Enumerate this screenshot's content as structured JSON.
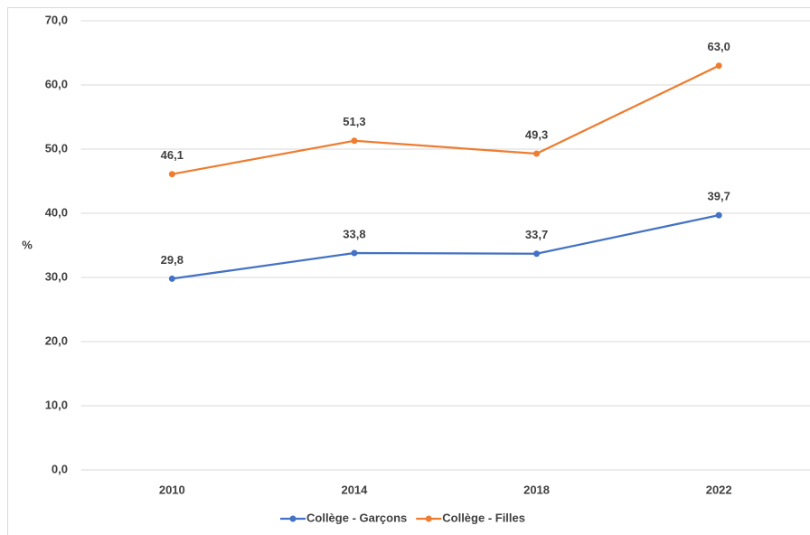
{
  "chart_data": {
    "type": "line",
    "categories": [
      "2010",
      "2014",
      "2018",
      "2022"
    ],
    "series": [
      {
        "name": "Collège - Garçons",
        "color": "#4472c4",
        "values": [
          29.8,
          33.8,
          33.7,
          39.7
        ],
        "value_labels": [
          "29,8",
          "33,8",
          "33,7",
          "39,7"
        ]
      },
      {
        "name": "Collège - Filles",
        "color": "#ed7d31",
        "values": [
          46.1,
          51.3,
          49.3,
          63.0
        ],
        "value_labels": [
          "46,1",
          "51,3",
          "49,3",
          "63,0"
        ]
      }
    ],
    "ylabel": "%",
    "ylim": [
      0,
      70
    ],
    "yticks": [
      {
        "value": 0,
        "label": "0,0"
      },
      {
        "value": 10,
        "label": "10,0"
      },
      {
        "value": 20,
        "label": "20,0"
      },
      {
        "value": 30,
        "label": "30,0"
      },
      {
        "value": 40,
        "label": "40,0"
      },
      {
        "value": 50,
        "label": "50,0"
      },
      {
        "value": 60,
        "label": "60,0"
      },
      {
        "value": 70,
        "label": "70,0"
      }
    ],
    "grid": true,
    "legend": "bottom"
  }
}
